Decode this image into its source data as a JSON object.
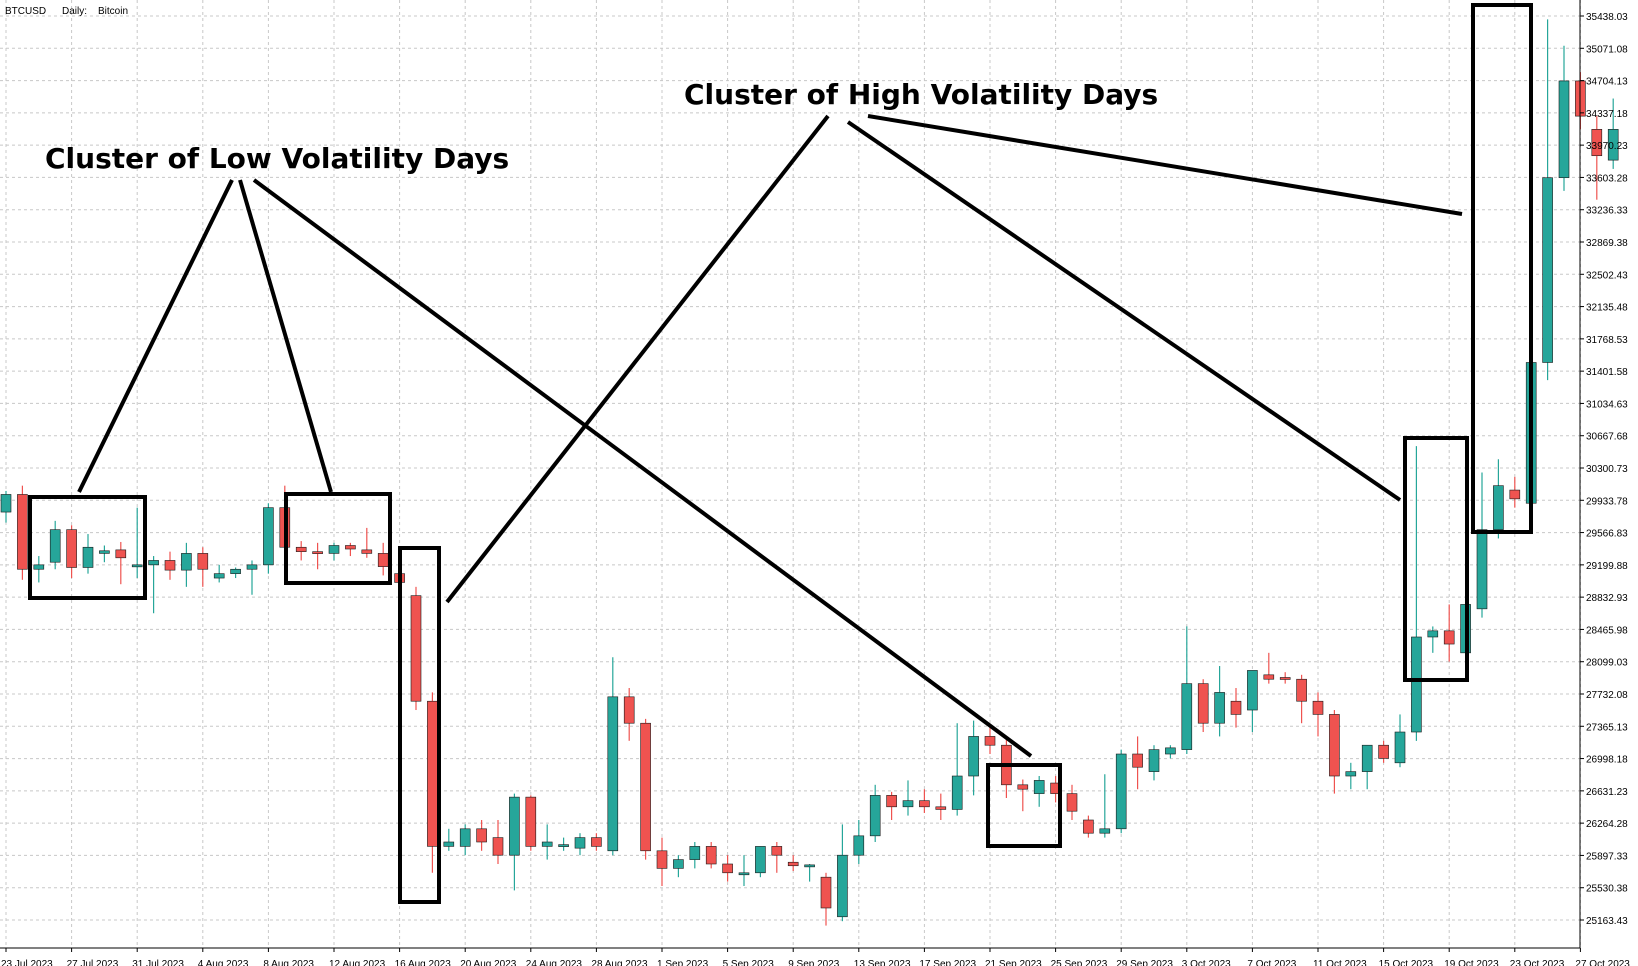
{
  "header": {
    "symbol": "BTCUSD",
    "timeframe": "Daily:",
    "description": "Bitcoin"
  },
  "colors": {
    "bull": "#26a69a",
    "bear": "#ef5350",
    "grid": "#c8c8c8",
    "annotation": "#000000"
  },
  "chart_data": {
    "type": "candlestick",
    "title": "",
    "xlabel": "",
    "ylabel": "",
    "grid": true,
    "y_axis_position": "right",
    "ylim": [
      24950,
      35500
    ],
    "y_ticks": [
      "35438.03",
      "35071.08",
      "34704.13",
      "34337.18",
      "33970.23",
      "33603.28",
      "33236.33",
      "32869.38",
      "32502.43",
      "32135.48",
      "31768.53",
      "31401.58",
      "31034.63",
      "30667.68",
      "30300.73",
      "29933.78",
      "29566.83",
      "29199.88",
      "28832.93",
      "28465.98",
      "28099.03",
      "27732.08",
      "27365.13",
      "26998.18",
      "26631.23",
      "26264.28",
      "25897.33",
      "25530.38",
      "25163.43"
    ],
    "x_labels": [
      "23 Jul 2023",
      "27 Jul 2023",
      "31 Jul 2023",
      "4 Aug 2023",
      "8 Aug 2023",
      "12 Aug 2023",
      "16 Aug 2023",
      "20 Aug 2023",
      "24 Aug 2023",
      "28 Aug 2023",
      "1 Sep 2023",
      "5 Sep 2023",
      "9 Sep 2023",
      "13 Sep 2023",
      "17 Sep 2023",
      "21 Sep 2023",
      "25 Sep 2023",
      "29 Sep 2023",
      "3 Oct 2023",
      "7 Oct 2023",
      "11 Oct 2023",
      "15 Oct 2023",
      "19 Oct 2023",
      "23 Oct 2023",
      "27 Oct 2023"
    ],
    "candles": [
      {
        "o": 29800,
        "h": 30040,
        "l": 29680,
        "c": 30000
      },
      {
        "o": 30000,
        "h": 30100,
        "l": 29030,
        "c": 29150
      },
      {
        "o": 29150,
        "h": 29300,
        "l": 29000,
        "c": 29200
      },
      {
        "o": 29230,
        "h": 29700,
        "l": 29150,
        "c": 29600
      },
      {
        "o": 29600,
        "h": 29650,
        "l": 29050,
        "c": 29170
      },
      {
        "o": 29170,
        "h": 29550,
        "l": 29100,
        "c": 29400
      },
      {
        "o": 29330,
        "h": 29420,
        "l": 29230,
        "c": 29360
      },
      {
        "o": 29370,
        "h": 29460,
        "l": 28980,
        "c": 29280
      },
      {
        "o": 29200,
        "h": 29850,
        "l": 29050,
        "c": 29200
      },
      {
        "o": 29200,
        "h": 29300,
        "l": 28650,
        "c": 29250
      },
      {
        "o": 29250,
        "h": 29350,
        "l": 29030,
        "c": 29140
      },
      {
        "o": 29140,
        "h": 29450,
        "l": 28950,
        "c": 29330
      },
      {
        "o": 29330,
        "h": 29400,
        "l": 28950,
        "c": 29150
      },
      {
        "o": 29050,
        "h": 29200,
        "l": 29000,
        "c": 29100
      },
      {
        "o": 29100,
        "h": 29170,
        "l": 29050,
        "c": 29150
      },
      {
        "o": 29150,
        "h": 29250,
        "l": 28860,
        "c": 29200
      },
      {
        "o": 29200,
        "h": 29900,
        "l": 29100,
        "c": 29850
      },
      {
        "o": 29850,
        "h": 30100,
        "l": 29300,
        "c": 29400
      },
      {
        "o": 29400,
        "h": 29470,
        "l": 29250,
        "c": 29350
      },
      {
        "o": 29350,
        "h": 29450,
        "l": 29150,
        "c": 29340
      },
      {
        "o": 29330,
        "h": 29450,
        "l": 29250,
        "c": 29420
      },
      {
        "o": 29420,
        "h": 29450,
        "l": 29300,
        "c": 29380
      },
      {
        "o": 29370,
        "h": 29620,
        "l": 29280,
        "c": 29330
      },
      {
        "o": 29330,
        "h": 29450,
        "l": 29080,
        "c": 29180
      },
      {
        "o": 29100,
        "h": 29150,
        "l": 28900,
        "c": 29000
      },
      {
        "o": 28850,
        "h": 28950,
        "l": 27550,
        "c": 27650
      },
      {
        "o": 27650,
        "h": 27750,
        "l": 25700,
        "c": 26000
      },
      {
        "o": 26000,
        "h": 26200,
        "l": 25950,
        "c": 26050
      },
      {
        "o": 26000,
        "h": 26250,
        "l": 25900,
        "c": 26200
      },
      {
        "o": 26200,
        "h": 26300,
        "l": 25950,
        "c": 26050
      },
      {
        "o": 26100,
        "h": 26300,
        "l": 25800,
        "c": 25900
      },
      {
        "o": 25900,
        "h": 26600,
        "l": 25500,
        "c": 26560
      },
      {
        "o": 26560,
        "h": 26580,
        "l": 25950,
        "c": 26000
      },
      {
        "o": 26000,
        "h": 26250,
        "l": 25850,
        "c": 26050
      },
      {
        "o": 26000,
        "h": 26100,
        "l": 25950,
        "c": 26020
      },
      {
        "o": 25980,
        "h": 26150,
        "l": 25900,
        "c": 26100
      },
      {
        "o": 26100,
        "h": 26150,
        "l": 25950,
        "c": 26000
      },
      {
        "o": 25950,
        "h": 28150,
        "l": 25900,
        "c": 27700
      },
      {
        "o": 27700,
        "h": 27800,
        "l": 27200,
        "c": 27400
      },
      {
        "o": 27400,
        "h": 27450,
        "l": 25850,
        "c": 25950
      },
      {
        "o": 25950,
        "h": 26100,
        "l": 25550,
        "c": 25750
      },
      {
        "o": 25750,
        "h": 25900,
        "l": 25650,
        "c": 25850
      },
      {
        "o": 25850,
        "h": 26050,
        "l": 25750,
        "c": 26000
      },
      {
        "o": 26000,
        "h": 26050,
        "l": 25750,
        "c": 25800
      },
      {
        "o": 25800,
        "h": 25900,
        "l": 25600,
        "c": 25700
      },
      {
        "o": 25700,
        "h": 25900,
        "l": 25550,
        "c": 25700
      },
      {
        "o": 25700,
        "h": 26000,
        "l": 25650,
        "c": 26000
      },
      {
        "o": 26000,
        "h": 26050,
        "l": 25700,
        "c": 25900
      },
      {
        "o": 25820,
        "h": 25900,
        "l": 25720,
        "c": 25780
      },
      {
        "o": 25780,
        "h": 25800,
        "l": 25600,
        "c": 25790
      },
      {
        "o": 25650,
        "h": 25700,
        "l": 25100,
        "c": 25300
      },
      {
        "o": 25200,
        "h": 26250,
        "l": 25150,
        "c": 25900
      },
      {
        "o": 25900,
        "h": 26300,
        "l": 25800,
        "c": 26120
      },
      {
        "o": 26120,
        "h": 26700,
        "l": 26050,
        "c": 26580
      },
      {
        "o": 26580,
        "h": 26620,
        "l": 26300,
        "c": 26450
      },
      {
        "o": 26450,
        "h": 26750,
        "l": 26350,
        "c": 26520
      },
      {
        "o": 26520,
        "h": 26650,
        "l": 26380,
        "c": 26450
      },
      {
        "o": 26450,
        "h": 26600,
        "l": 26300,
        "c": 26420
      },
      {
        "o": 26420,
        "h": 27400,
        "l": 26350,
        "c": 26800
      },
      {
        "o": 26800,
        "h": 27430,
        "l": 26580,
        "c": 27250
      },
      {
        "o": 27250,
        "h": 27360,
        "l": 27050,
        "c": 27150
      },
      {
        "o": 27150,
        "h": 27250,
        "l": 26550,
        "c": 26700
      },
      {
        "o": 26700,
        "h": 26760,
        "l": 26400,
        "c": 26650
      },
      {
        "o": 26600,
        "h": 26800,
        "l": 26450,
        "c": 26750
      },
      {
        "o": 26720,
        "h": 26800,
        "l": 26500,
        "c": 26600
      },
      {
        "o": 26600,
        "h": 26700,
        "l": 26300,
        "c": 26400
      },
      {
        "o": 26300,
        "h": 26350,
        "l": 26100,
        "c": 26150
      },
      {
        "o": 26150,
        "h": 26820,
        "l": 26100,
        "c": 26200
      },
      {
        "o": 26200,
        "h": 27100,
        "l": 26150,
        "c": 27050
      },
      {
        "o": 27050,
        "h": 27250,
        "l": 26650,
        "c": 26900
      },
      {
        "o": 26850,
        "h": 27150,
        "l": 26750,
        "c": 27100
      },
      {
        "o": 27050,
        "h": 27150,
        "l": 27000,
        "c": 27120
      },
      {
        "o": 27100,
        "h": 28500,
        "l": 27050,
        "c": 27850
      },
      {
        "o": 27850,
        "h": 27900,
        "l": 27300,
        "c": 27400
      },
      {
        "o": 27400,
        "h": 28050,
        "l": 27250,
        "c": 27750
      },
      {
        "o": 27650,
        "h": 27800,
        "l": 27350,
        "c": 27500
      },
      {
        "o": 27550,
        "h": 28000,
        "l": 27300,
        "c": 28000
      },
      {
        "o": 27950,
        "h": 28200,
        "l": 27850,
        "c": 27900
      },
      {
        "o": 27920,
        "h": 27980,
        "l": 27850,
        "c": 27900
      },
      {
        "o": 27900,
        "h": 27950,
        "l": 27400,
        "c": 27650
      },
      {
        "o": 27650,
        "h": 27750,
        "l": 27250,
        "c": 27500
      },
      {
        "o": 27500,
        "h": 27550,
        "l": 26600,
        "c": 26800
      },
      {
        "o": 26800,
        "h": 26950,
        "l": 26650,
        "c": 26850
      },
      {
        "o": 26850,
        "h": 27050,
        "l": 26650,
        "c": 27150
      },
      {
        "o": 27150,
        "h": 27200,
        "l": 26950,
        "c": 27000
      },
      {
        "o": 26950,
        "h": 27500,
        "l": 26900,
        "c": 27300
      },
      {
        "o": 27300,
        "h": 30550,
        "l": 27200,
        "c": 28380
      },
      {
        "o": 28380,
        "h": 28500,
        "l": 28200,
        "c": 28450
      },
      {
        "o": 28450,
        "h": 28750,
        "l": 28100,
        "c": 28300
      },
      {
        "o": 28200,
        "h": 28800,
        "l": 28150,
        "c": 28750
      },
      {
        "o": 28700,
        "h": 30250,
        "l": 28600,
        "c": 29600
      },
      {
        "o": 29600,
        "h": 30400,
        "l": 29500,
        "c": 30100
      },
      {
        "o": 30050,
        "h": 30200,
        "l": 29850,
        "c": 29950
      },
      {
        "o": 29900,
        "h": 31900,
        "l": 29800,
        "c": 31500
      },
      {
        "o": 31500,
        "h": 35400,
        "l": 31300,
        "c": 33600
      },
      {
        "o": 33600,
        "h": 35100,
        "l": 33450,
        "c": 34700
      },
      {
        "o": 34700,
        "h": 34800,
        "l": 34150,
        "c": 34300
      },
      {
        "o": 34150,
        "h": 34300,
        "l": 33350,
        "c": 33850
      },
      {
        "o": 33800,
        "h": 34500,
        "l": 33700,
        "c": 34150
      }
    ]
  },
  "annotations": {
    "low_label": "Cluster of Low Volatility Days",
    "high_label": "Cluster of High Volatility Days"
  }
}
